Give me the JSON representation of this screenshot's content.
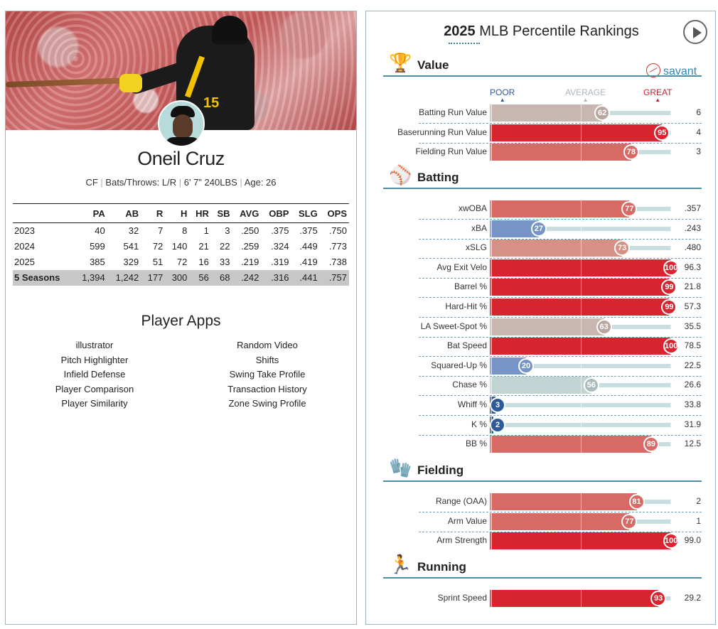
{
  "player": {
    "name": "Oneil Cruz",
    "position": "CF",
    "bats_throws": "Bats/Throws: L/R",
    "size": "6' 7\" 240LBS",
    "age": "Age: 26",
    "jersey_number": "15"
  },
  "stats": {
    "headers": [
      "",
      "PA",
      "AB",
      "R",
      "H",
      "HR",
      "SB",
      "AVG",
      "OBP",
      "SLG",
      "OPS"
    ],
    "rows": [
      [
        "2023",
        "40",
        "32",
        "7",
        "8",
        "1",
        "3",
        ".250",
        ".375",
        ".375",
        ".750"
      ],
      [
        "2024",
        "599",
        "541",
        "72",
        "140",
        "21",
        "22",
        ".259",
        ".324",
        ".449",
        ".773"
      ],
      [
        "2025",
        "385",
        "329",
        "51",
        "72",
        "16",
        "33",
        ".219",
        ".319",
        ".419",
        ".738"
      ]
    ],
    "total": [
      "5 Seasons",
      "1,394",
      "1,242",
      "177",
      "300",
      "56",
      "68",
      ".242",
      ".316",
      ".441",
      ".757"
    ]
  },
  "apps": {
    "title": "Player Apps",
    "left": [
      "illustrator",
      "Pitch Highlighter",
      "Infield Defense",
      "Player Comparison",
      "Player Similarity"
    ],
    "right": [
      "Random Video",
      "Shifts",
      "Swing Take Profile",
      "Transaction History",
      "Zone Swing Profile"
    ]
  },
  "rankings": {
    "title_year": "2025",
    "title_rest": " MLB Percentile Rankings",
    "savant_label": "savant",
    "scale": {
      "poor": "POOR",
      "average": "AVERAGE",
      "great": "GREAT"
    },
    "sections": [
      {
        "name": "Value",
        "icon": "trophy-icon",
        "glyph": "🏆",
        "metrics": [
          {
            "label": "Batting Run Value",
            "pct": 62,
            "value": "6"
          },
          {
            "label": "Baserunning Run Value",
            "pct": 95,
            "value": "4"
          },
          {
            "label": "Fielding Run Value",
            "pct": 78,
            "value": "3"
          }
        ]
      },
      {
        "name": "Batting",
        "icon": "batter-icon",
        "glyph": "⚾",
        "metrics": [
          {
            "label": "xwOBA",
            "pct": 77,
            "value": ".357"
          },
          {
            "label": "xBA",
            "pct": 27,
            "value": ".243"
          },
          {
            "label": "xSLG",
            "pct": 73,
            "value": ".480"
          },
          {
            "label": "Avg Exit Velo",
            "pct": 100,
            "value": "96.3"
          },
          {
            "label": "Barrel %",
            "pct": 99,
            "value": "21.8"
          },
          {
            "label": "Hard-Hit %",
            "pct": 99,
            "value": "57.3"
          },
          {
            "label": "LA Sweet-Spot %",
            "pct": 63,
            "value": "35.5"
          },
          {
            "label": "Bat Speed",
            "pct": 100,
            "value": "78.5"
          },
          {
            "label": "Squared-Up %",
            "pct": 20,
            "value": "22.5"
          },
          {
            "label": "Chase %",
            "pct": 56,
            "value": "26.6"
          },
          {
            "label": "Whiff %",
            "pct": 3,
            "value": "33.8"
          },
          {
            "label": "K %",
            "pct": 2,
            "value": "31.9"
          },
          {
            "label": "BB %",
            "pct": 89,
            "value": "12.5"
          }
        ]
      },
      {
        "name": "Fielding",
        "icon": "fielder-icon",
        "glyph": "🧤",
        "metrics": [
          {
            "label": "Range (OAA)",
            "pct": 81,
            "value": "2"
          },
          {
            "label": "Arm Value",
            "pct": 77,
            "value": "1"
          },
          {
            "label": "Arm Strength",
            "pct": 100,
            "value": "99.0"
          }
        ]
      },
      {
        "name": "Running",
        "icon": "runner-icon",
        "glyph": "🏃",
        "metrics": [
          {
            "label": "Sprint Speed",
            "pct": 93,
            "value": "29.2"
          }
        ]
      }
    ]
  }
}
